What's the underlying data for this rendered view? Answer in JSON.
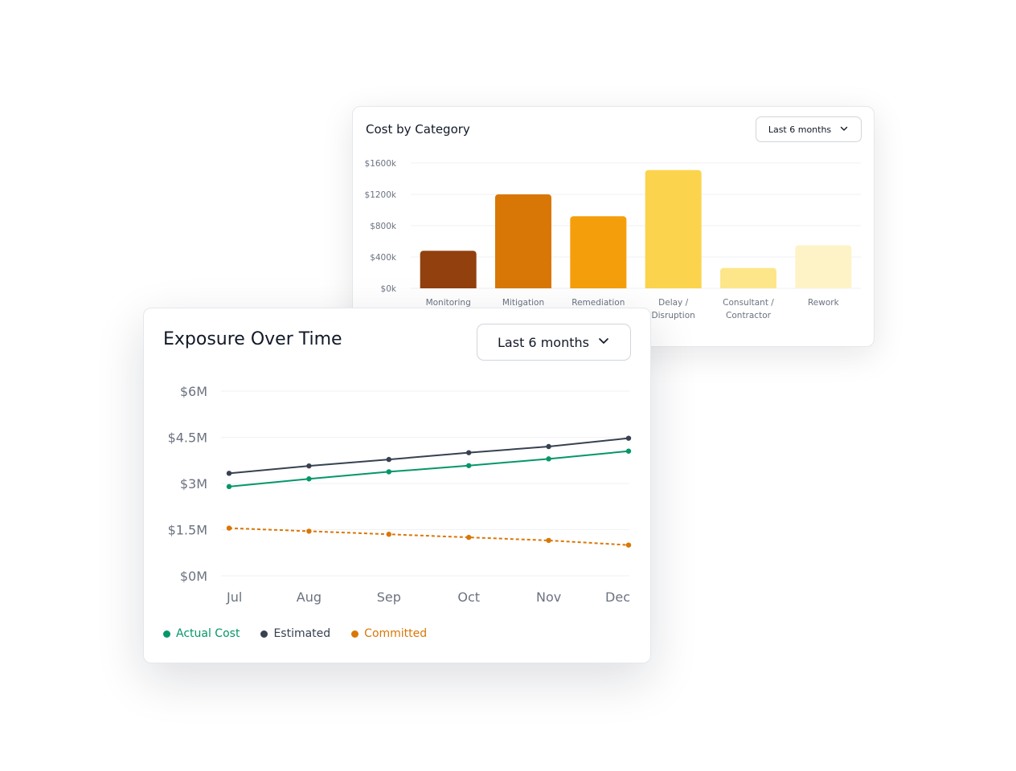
{
  "cost_card": {
    "title": "Cost by Category",
    "dropdown_label": "Last 6 months",
    "dropdown_icon": "chevron-down-icon"
  },
  "exposure_card": {
    "title": "Exposure Over Time",
    "dropdown_label": "Last 6 months",
    "dropdown_icon": "chevron-down-icon"
  },
  "chart_data": [
    {
      "type": "bar",
      "title": "Cost by Category",
      "categories": [
        "Monitoring",
        "Mitigation",
        "Remediation",
        "Delay / Disruption",
        "Consultant / Contractor",
        "Rework"
      ],
      "category_lines": [
        [
          "Monitoring"
        ],
        [
          "Mitigation"
        ],
        [
          "Remediation"
        ],
        [
          "Delay /",
          "Disruption"
        ],
        [
          "Consultant /",
          "Contractor"
        ],
        [
          "Rework"
        ]
      ],
      "values": [
        480,
        1200,
        920,
        1510,
        260,
        550
      ],
      "colors": [
        "#92400e",
        "#d97706",
        "#f59e0b",
        "#fcd34d",
        "#fde68a",
        "#fef3c7"
      ],
      "ylim": [
        0,
        1600
      ],
      "yticks": [
        0,
        400,
        800,
        1200,
        1600
      ],
      "ytick_labels": [
        "$0k",
        "$400k",
        "$800k",
        "$1200k",
        "$1600k"
      ],
      "grid": true,
      "xlabel": "",
      "ylabel": ""
    },
    {
      "type": "line",
      "title": "Exposure Over Time",
      "x": [
        "Jul",
        "Aug",
        "Sep",
        "Oct",
        "Nov",
        "Dec"
      ],
      "ylim": [
        0,
        6
      ],
      "yticks": [
        0,
        1.5,
        3,
        4.5,
        6
      ],
      "ytick_labels": [
        "$0M",
        "$1.5M",
        "$3M",
        "$4.5M",
        "$6M"
      ],
      "grid": true,
      "legend_position": "bottom-left",
      "series": [
        {
          "name": "Actual Cost",
          "values": [
            2.9,
            3.15,
            3.38,
            3.58,
            3.8,
            4.05
          ],
          "color": "#059669",
          "style": "solid"
        },
        {
          "name": "Estimated",
          "values": [
            3.33,
            3.57,
            3.78,
            4.0,
            4.2,
            4.47
          ],
          "color": "#374151",
          "style": "solid"
        },
        {
          "name": "Committed",
          "values": [
            1.55,
            1.45,
            1.35,
            1.25,
            1.15,
            1.0
          ],
          "color": "#d97706",
          "style": "dashed"
        }
      ]
    }
  ]
}
